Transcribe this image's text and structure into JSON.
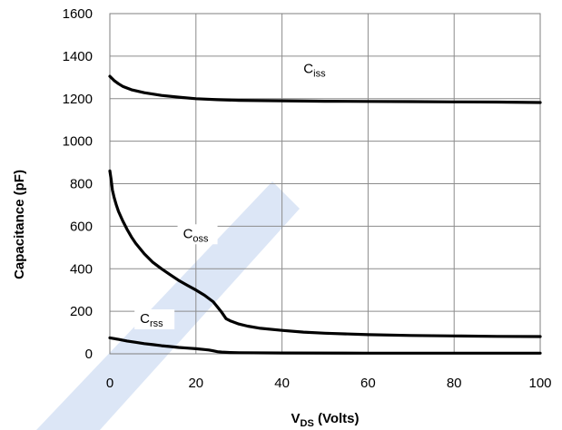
{
  "chart_data": {
    "type": "line",
    "xlabel": "V",
    "xlabel_sub": "DS",
    "xlabel_suffix": " (Volts)",
    "ylabel": "Capacitance (pF)",
    "xlim": [
      0,
      100
    ],
    "ylim": [
      0,
      1600
    ],
    "xticks": [
      0,
      20,
      40,
      60,
      80,
      100
    ],
    "yticks": [
      0,
      200,
      400,
      600,
      800,
      1000,
      1200,
      1400,
      1600
    ],
    "grid": true,
    "watermark_color": "#dce6f6",
    "series": [
      {
        "name": "C",
        "name_sub": "iss",
        "color": "#000000",
        "x": [
          0,
          1,
          2,
          3,
          5,
          8,
          12,
          16,
          20,
          25,
          30,
          40,
          50,
          60,
          70,
          80,
          90,
          100
        ],
        "y": [
          1305,
          1285,
          1270,
          1258,
          1242,
          1228,
          1215,
          1207,
          1200,
          1195,
          1192,
          1190,
          1188,
          1187,
          1186,
          1185,
          1184,
          1182
        ]
      },
      {
        "name": "C",
        "name_sub": "oss",
        "color": "#000000",
        "x": [
          0,
          0.3,
          0.6,
          1,
          1.5,
          2,
          3,
          4,
          5,
          6,
          8,
          10,
          12,
          14,
          16,
          18,
          20,
          22,
          24,
          25,
          26,
          27,
          28,
          30,
          32,
          35,
          40,
          45,
          50,
          60,
          70,
          80,
          90,
          100
        ],
        "y": [
          860,
          820,
          770,
          735,
          700,
          670,
          625,
          585,
          550,
          520,
          470,
          430,
          400,
          372,
          345,
          322,
          300,
          275,
          245,
          220,
          195,
          165,
          155,
          140,
          130,
          120,
          110,
          102,
          97,
          90,
          86,
          84,
          82,
          81
        ]
      },
      {
        "name": "C",
        "name_sub": "rss",
        "color": "#000000",
        "x": [
          0,
          2,
          4,
          6,
          8,
          10,
          12,
          14,
          16,
          18,
          20,
          22,
          23,
          24,
          25,
          26,
          28,
          30,
          40,
          60,
          80,
          100
        ],
        "y": [
          75,
          68,
          60,
          54,
          48,
          43,
          38,
          34,
          30,
          27,
          24,
          20,
          18,
          14,
          10,
          8,
          6,
          5,
          4,
          3,
          3,
          3
        ]
      }
    ],
    "annotations": [
      {
        "series_index": 0,
        "x": 45,
        "y": 1320
      },
      {
        "series_index": 1,
        "x": 17,
        "y": 545
      },
      {
        "series_index": 2,
        "x": 7,
        "y": 145
      }
    ]
  }
}
